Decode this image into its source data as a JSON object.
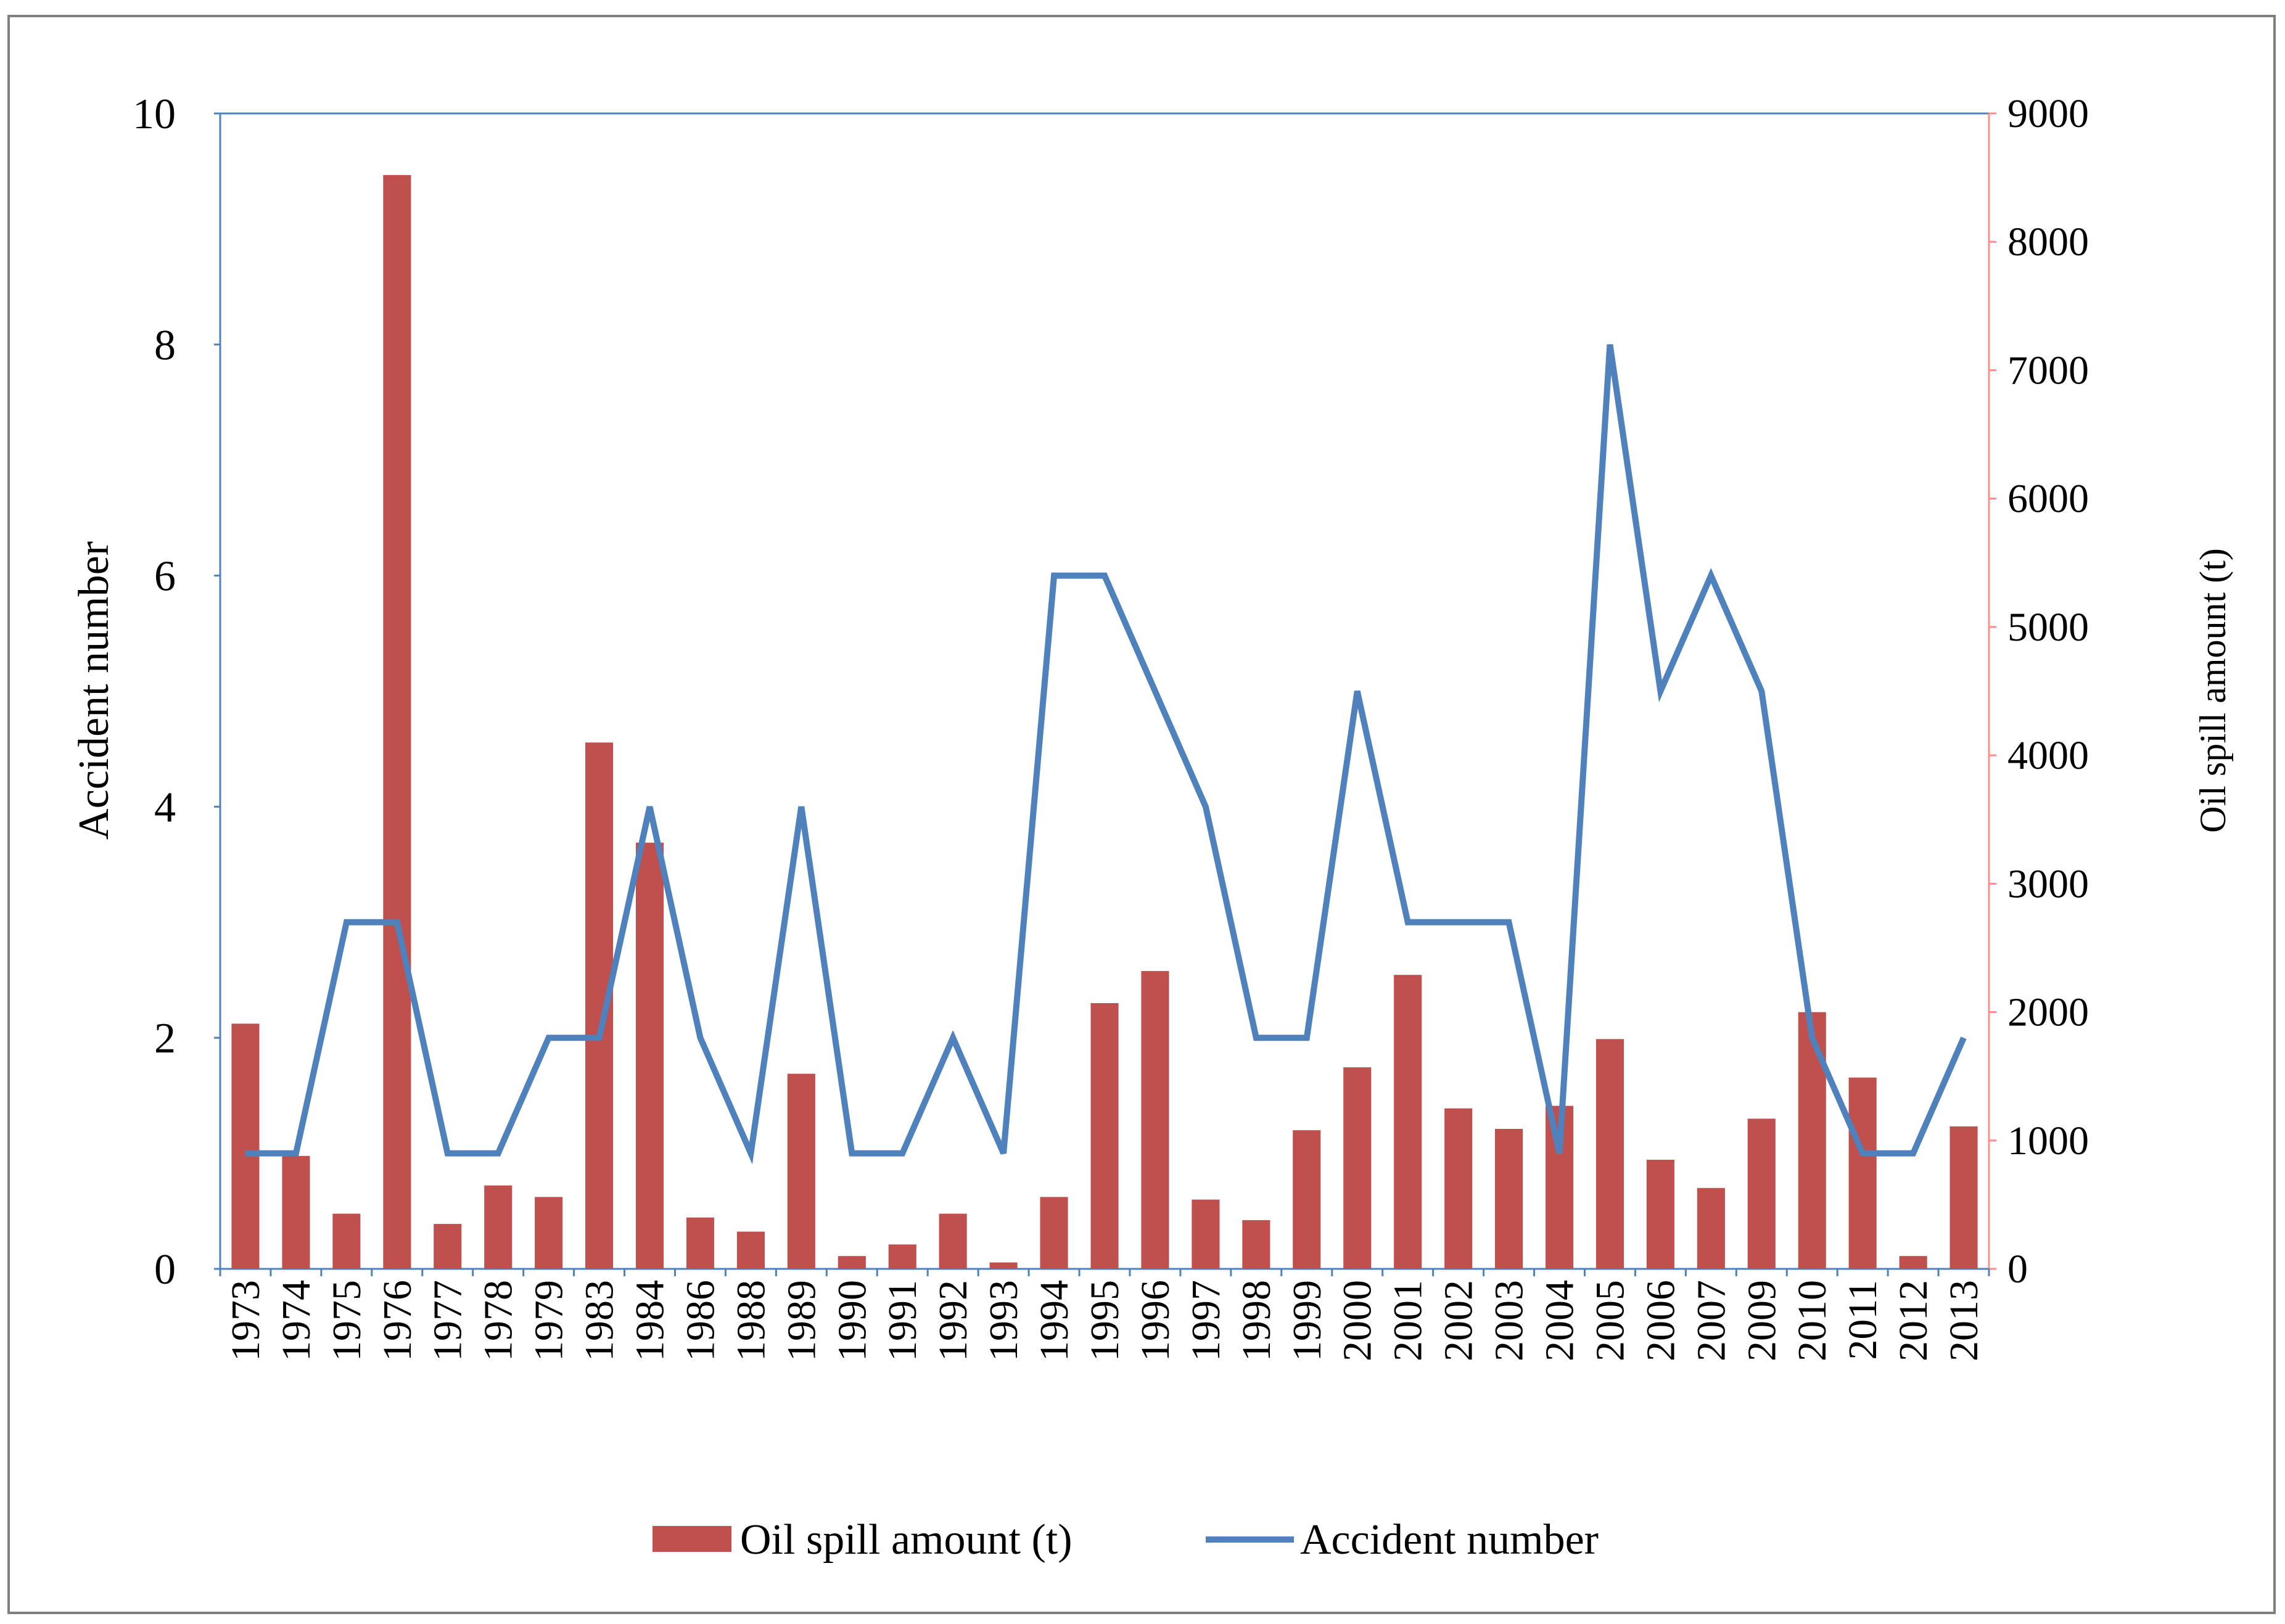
{
  "chart_data": {
    "type": "bar",
    "title": "",
    "categories": [
      "1973",
      "1974",
      "1975",
      "1976",
      "1977",
      "1978",
      "1979",
      "1983",
      "1984",
      "1986",
      "1988",
      "1989",
      "1990",
      "1991",
      "1992",
      "1993",
      "1994",
      "1995",
      "1996",
      "1997",
      "1998",
      "1999",
      "2000",
      "2001",
      "2002",
      "2003",
      "2004",
      "2005",
      "2006",
      "2007",
      "2009",
      "2010",
      "2011",
      "2012",
      "2013"
    ],
    "series": [
      {
        "name": "Oil spill amount (t)",
        "type": "bar",
        "axis": "right",
        "color": "#c0504d",
        "values": [
          1910,
          880,
          430,
          8520,
          350,
          650,
          560,
          4100,
          3320,
          400,
          290,
          1520,
          100,
          190,
          430,
          50,
          560,
          2070,
          2320,
          540,
          380,
          1080,
          1570,
          2290,
          1250,
          1090,
          1270,
          1790,
          850,
          630,
          1170,
          2000,
          1490,
          100,
          1110
        ]
      },
      {
        "name": "Accident number",
        "type": "line",
        "axis": "left",
        "color": "#4f81bd",
        "values": [
          1,
          1,
          3,
          3,
          1,
          1,
          2,
          2,
          4,
          2,
          1,
          4,
          1,
          1,
          2,
          1,
          6,
          6,
          5,
          4,
          2,
          2,
          5,
          3,
          3,
          3,
          1,
          8,
          5,
          6,
          5,
          2,
          1,
          1,
          2
        ]
      }
    ],
    "ylabel": "Accident number",
    "ylim": [
      0,
      10
    ],
    "yticks": [
      "0",
      "2",
      "4",
      "6",
      "8",
      "10"
    ],
    "y2label": "Oil spill amount (t)",
    "y2lim": [
      0,
      9000
    ],
    "y2ticks": [
      "0",
      "1000",
      "2000",
      "3000",
      "4000",
      "5000",
      "6000",
      "7000",
      "8000",
      "9000"
    ],
    "grid": false,
    "legend_position": "bottom"
  }
}
